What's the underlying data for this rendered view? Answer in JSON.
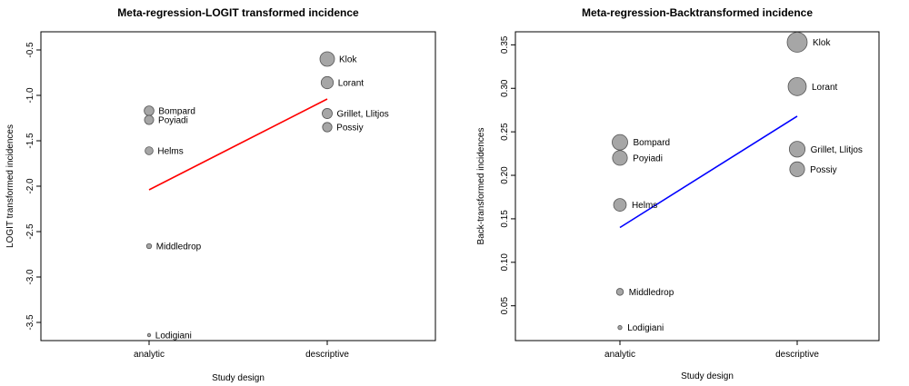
{
  "chart_data": [
    {
      "type": "scatter",
      "title": "Meta-regression-LOGIT transformed incidence",
      "xlabel": "Study design",
      "ylabel": "LOGIT transformed incidences",
      "categories": [
        "analytic",
        "descriptive"
      ],
      "ylim": [
        -3.7,
        -0.3
      ],
      "yticks": [
        "-3.5",
        "-3.0",
        "-2.5",
        "-2.0",
        "-1.5",
        "-1.0",
        "-0.5"
      ],
      "grid": false,
      "points": [
        {
          "label": "Bompard",
          "x": "analytic",
          "y": -1.17,
          "weight": 0.45
        },
        {
          "label": "Poyiadi",
          "x": "analytic",
          "y": -1.27,
          "weight": 0.4
        },
        {
          "label": "Helms",
          "x": "analytic",
          "y": -1.61,
          "weight": 0.3
        },
        {
          "label": "Middledrop",
          "x": "analytic",
          "y": -2.66,
          "weight": 0.12
        },
        {
          "label": "Lodigiani",
          "x": "analytic",
          "y": -3.64,
          "weight": 0.05
        },
        {
          "label": "Klok",
          "x": "descriptive",
          "y": -0.6,
          "weight": 1.0
        },
        {
          "label": "Lorant",
          "x": "descriptive",
          "y": -0.86,
          "weight": 0.7
        },
        {
          "label": "Grillet, Llitjos",
          "x": "descriptive",
          "y": -1.2,
          "weight": 0.48
        },
        {
          "label": "Possiy",
          "x": "descriptive",
          "y": -1.35,
          "weight": 0.42
        }
      ],
      "regression_line": {
        "color": "#ff0000",
        "x": [
          "analytic",
          "descriptive"
        ],
        "y": [
          -2.04,
          -1.04
        ]
      },
      "point_color": "#a6a6a6"
    },
    {
      "type": "scatter",
      "title": "Meta-regression-Backtransformed incidence",
      "xlabel": "Study design",
      "ylabel": "Back-transformed incidences",
      "categories": [
        "analytic",
        "descriptive"
      ],
      "ylim": [
        0.01,
        0.365
      ],
      "yticks": [
        "0.05",
        "0.10",
        "0.15",
        "0.20",
        "0.25",
        "0.30",
        "0.35"
      ],
      "grid": false,
      "points": [
        {
          "label": "Bompard",
          "x": "analytic",
          "y": 0.238,
          "weight": 0.6
        },
        {
          "label": "Poyiadi",
          "x": "analytic",
          "y": 0.22,
          "weight": 0.55
        },
        {
          "label": "Helms",
          "x": "analytic",
          "y": 0.166,
          "weight": 0.4
        },
        {
          "label": "Middledrop",
          "x": "analytic",
          "y": 0.066,
          "weight": 0.12
        },
        {
          "label": "Lodigiani",
          "x": "analytic",
          "y": 0.025,
          "weight": 0.04
        },
        {
          "label": "Klok",
          "x": "descriptive",
          "y": 0.353,
          "weight": 1.0
        },
        {
          "label": "Lorant",
          "x": "descriptive",
          "y": 0.302,
          "weight": 0.82
        },
        {
          "label": "Grillet, Llitjos",
          "x": "descriptive",
          "y": 0.23,
          "weight": 0.62
        },
        {
          "label": "Possiy",
          "x": "descriptive",
          "y": 0.207,
          "weight": 0.55
        }
      ],
      "regression_line": {
        "color": "#0000ff",
        "x": [
          "analytic",
          "descriptive"
        ],
        "y": [
          0.14,
          0.268
        ]
      },
      "point_color": "#a6a6a6"
    }
  ]
}
